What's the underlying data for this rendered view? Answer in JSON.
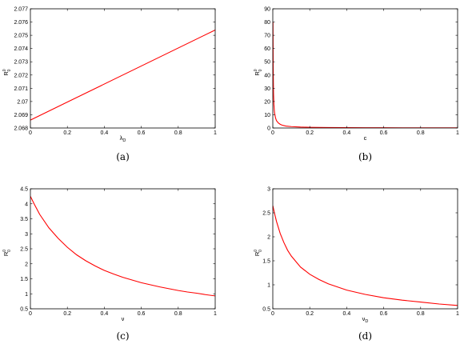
{
  "chart_data": [
    {
      "type": "line",
      "panel_label": "(a)",
      "xlabel": "λ",
      "xlabel_sub": "D",
      "ylabel": "R",
      "ylabel_sup": "0",
      "ylabel_sub": "0",
      "xlim": [
        0,
        1
      ],
      "ylim": [
        2.068,
        2.077
      ],
      "xticks": [
        0,
        0.2,
        0.4,
        0.6,
        0.8,
        1
      ],
      "xtick_labels": [
        "0",
        "0.2",
        "0.4",
        "0.6",
        "0.8",
        "1"
      ],
      "yticks": [
        2.068,
        2.069,
        2.07,
        2.071,
        2.072,
        2.073,
        2.074,
        2.075,
        2.076,
        2.077
      ],
      "ytick_labels": [
        "2.068",
        "2.069",
        "2.07",
        "2.071",
        "2.072",
        "2.073",
        "2.074",
        "2.075",
        "2.076",
        "2.077"
      ],
      "series": [
        {
          "color": "#ff0000",
          "x": [
            0,
            1
          ],
          "y": [
            2.0686,
            2.0754
          ]
        }
      ]
    },
    {
      "type": "line",
      "panel_label": "(b)",
      "xlabel": "c",
      "xlabel_sub": "",
      "ylabel": "R",
      "ylabel_sup": "0",
      "ylabel_sub": "0",
      "xlim": [
        0,
        1
      ],
      "ylim": [
        0,
        90
      ],
      "xticks": [
        0,
        0.2,
        0.4,
        0.6,
        0.8,
        1
      ],
      "xtick_labels": [
        "0",
        "0.2",
        "0.4",
        "0.6",
        "0.8",
        "1"
      ],
      "yticks": [
        0,
        10,
        20,
        30,
        40,
        50,
        60,
        70,
        80,
        90
      ],
      "ytick_labels": [
        "0",
        "10",
        "20",
        "30",
        "40",
        "50",
        "60",
        "70",
        "80",
        "90"
      ],
      "series": [
        {
          "color": "#ff0000",
          "x": [
            0.001,
            0.002,
            0.004,
            0.006,
            0.008,
            0.01,
            0.015,
            0.02,
            0.03,
            0.04,
            0.05,
            0.07,
            0.1,
            0.15,
            0.2,
            0.3,
            0.4,
            0.5,
            0.6,
            0.7,
            0.8,
            0.9,
            1.0
          ],
          "y": [
            80,
            47,
            26,
            18,
            13.5,
            11,
            7.5,
            5.5,
            3.8,
            2.8,
            2.2,
            1.5,
            1.05,
            0.7,
            0.52,
            0.35,
            0.26,
            0.21,
            0.17,
            0.15,
            0.13,
            0.12,
            0.1
          ]
        }
      ]
    },
    {
      "type": "line",
      "panel_label": "(c)",
      "xlabel": "ν",
      "xlabel_sub": "",
      "ylabel": "R",
      "ylabel_sup": "0",
      "ylabel_sub": "0",
      "xlim": [
        0,
        1
      ],
      "ylim": [
        0.5,
        4.5
      ],
      "xticks": [
        0,
        0.2,
        0.4,
        0.6,
        0.8,
        1
      ],
      "xtick_labels": [
        "0",
        "0.2",
        "0.4",
        "0.6",
        "0.8",
        "1"
      ],
      "yticks": [
        0.5,
        1,
        1.5,
        2,
        2.5,
        3,
        3.5,
        4,
        4.5
      ],
      "ytick_labels": [
        "0.5",
        "1",
        "1.5",
        "2",
        "2.5",
        "3",
        "3.5",
        "4",
        "4.5"
      ],
      "series": [
        {
          "color": "#ff0000",
          "x": [
            0,
            0.02,
            0.05,
            0.1,
            0.15,
            0.2,
            0.25,
            0.3,
            0.35,
            0.4,
            0.45,
            0.5,
            0.55,
            0.6,
            0.65,
            0.7,
            0.75,
            0.8,
            0.85,
            0.9,
            0.95,
            1.0
          ],
          "y": [
            4.25,
            4.0,
            3.65,
            3.2,
            2.85,
            2.55,
            2.3,
            2.1,
            1.93,
            1.78,
            1.66,
            1.55,
            1.46,
            1.37,
            1.3,
            1.23,
            1.17,
            1.11,
            1.06,
            1.02,
            0.97,
            0.93
          ]
        }
      ]
    },
    {
      "type": "line",
      "panel_label": "(d)",
      "xlabel": "ν",
      "xlabel_sub": "D",
      "ylabel": "R",
      "ylabel_sup": "0",
      "ylabel_sub": "0",
      "xlim": [
        0,
        1
      ],
      "ylim": [
        0.5,
        3
      ],
      "xticks": [
        0,
        0.2,
        0.4,
        0.6,
        0.8,
        1
      ],
      "xtick_labels": [
        "0",
        "0.2",
        "0.4",
        "0.6",
        "0.8",
        "1"
      ],
      "yticks": [
        0.5,
        1,
        1.5,
        2,
        2.5,
        3
      ],
      "ytick_labels": [
        "0.5",
        "1",
        "1.5",
        "2",
        "2.5",
        "3"
      ],
      "series": [
        {
          "color": "#ff0000",
          "x": [
            0,
            0.01,
            0.02,
            0.04,
            0.06,
            0.08,
            0.1,
            0.15,
            0.2,
            0.25,
            0.3,
            0.4,
            0.5,
            0.6,
            0.7,
            0.8,
            0.9,
            1.0
          ],
          "y": [
            2.65,
            2.48,
            2.32,
            2.07,
            1.88,
            1.72,
            1.6,
            1.37,
            1.22,
            1.11,
            1.02,
            0.89,
            0.8,
            0.73,
            0.68,
            0.64,
            0.6,
            0.57
          ]
        }
      ]
    }
  ]
}
